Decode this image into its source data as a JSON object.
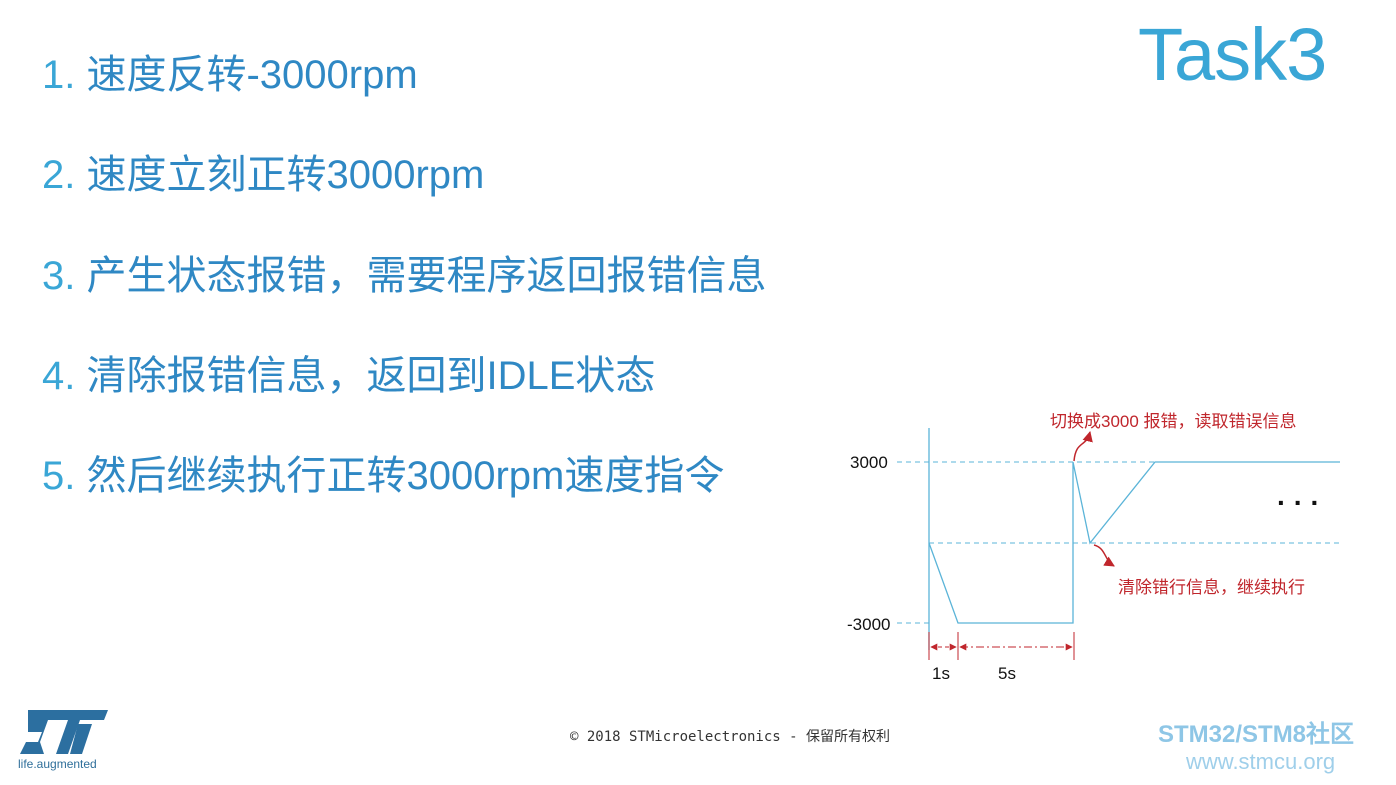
{
  "slide": {
    "title": "Task3",
    "items": [
      {
        "num": "1.",
        "text": "速度反转-3000rpm"
      },
      {
        "num": "2.",
        "text": "速度立刻正转3000rpm"
      },
      {
        "num": "3.",
        "text": "产生状态报错，需要程序返回报错信息"
      },
      {
        "num": "4.",
        "text": "清除报错信息，返回到IDLE状态"
      },
      {
        "num": "5.",
        "text": "然后继续执行正转3000rpm速度指令"
      }
    ]
  },
  "diagram": {
    "y_labels": [
      "3000",
      "-3000"
    ],
    "durations": [
      "1s",
      "5s"
    ],
    "annotation_top": "切换成3000 报错，读取错误信息",
    "annotation_bottom": "清除错行信息，继续执行",
    "ellipsis": "...",
    "line_color": "#5bb4d8",
    "arrow_color": "#c0262c"
  },
  "footer": {
    "copyright": "© 2018 STMicroelectronics - 保留所有权利",
    "logo_tagline": "life.augmented",
    "watermark_line1": "STM32/STM8社区",
    "watermark_line2": "www.stmcu.org"
  }
}
